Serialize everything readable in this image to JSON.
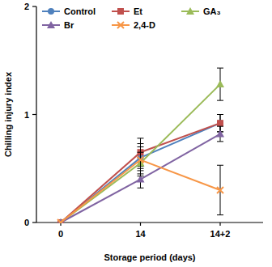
{
  "chart_data": {
    "type": "line",
    "x_label": "Storage period (days)",
    "y_label": "Chilling injury index",
    "categories": [
      "0",
      "14",
      "14+2"
    ],
    "ylim": [
      0,
      2
    ],
    "yticks": [
      0,
      1,
      2
    ],
    "grid": false,
    "legend": "top",
    "series": [
      {
        "name": "Control",
        "color": "#4f81bd",
        "marker": "circle",
        "values": [
          0,
          0.6,
          0.92
        ],
        "errors": [
          0,
          0.1,
          0.08
        ]
      },
      {
        "name": "Et",
        "color": "#c0504d",
        "marker": "square",
        "values": [
          0,
          0.65,
          0.92
        ],
        "errors": [
          0,
          0.13,
          0.08
        ]
      },
      {
        "name": "GA₃",
        "color": "#9bbb59",
        "marker": "triangle",
        "values": [
          0,
          0.55,
          1.28
        ],
        "errors": [
          0,
          0.1,
          0.15
        ]
      },
      {
        "name": "Br",
        "color": "#8064a2",
        "marker": "triangle",
        "values": [
          0,
          0.4,
          0.82
        ],
        "errors": [
          0,
          0.08,
          0.07
        ]
      },
      {
        "name": "2,4-D",
        "color": "#f79646",
        "marker": "x",
        "values": [
          0,
          0.58,
          0.3
        ],
        "errors": [
          0,
          0.15,
          0.23
        ]
      }
    ]
  }
}
